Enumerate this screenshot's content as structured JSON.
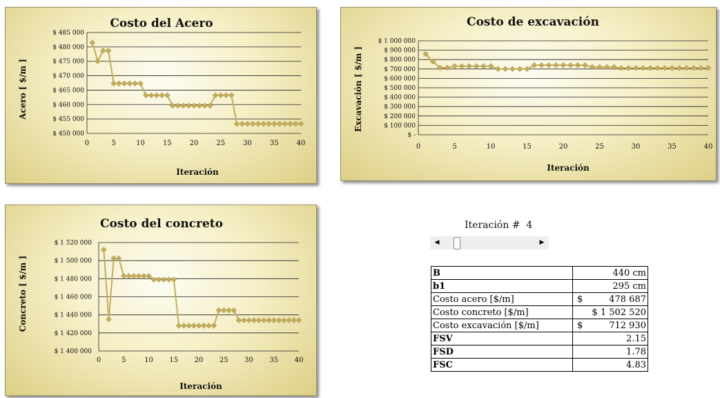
{
  "charts": {
    "chart_acero": {
      "title": "Costo del Acero",
      "xlabel": "Iteración",
      "ylabel": "Acero [ $/m ]",
      "yticks": [
        "$ 450 000",
        "$ 455 000",
        "$ 460 000",
        "$ 465 000",
        "$ 470 000",
        "$ 475 000",
        "$ 480 000",
        "$ 485 000"
      ],
      "xticks": [
        "0",
        "5",
        "10",
        "15",
        "20",
        "25",
        "30",
        "35",
        "40"
      ]
    },
    "chart_excavacion": {
      "title": "Costo de excavación",
      "xlabel": "Iteración",
      "ylabel": "Excavación [ $/m ]",
      "yticks": [
        "$ -",
        "$ 100 000",
        "$ 200 000",
        "$ 300 000",
        "$ 400 000",
        "$ 500 000",
        "$ 600 000",
        "$ 700 000",
        "$ 800 000",
        "$ 900 000",
        "$ 1 000 000"
      ],
      "xticks": [
        "0",
        "5",
        "10",
        "15",
        "20",
        "25",
        "30",
        "35",
        "40"
      ]
    },
    "chart_concreto": {
      "title": "Costo del concreto",
      "xlabel": "Iteración",
      "ylabel": "Concreto [ $/m ]",
      "yticks": [
        "$ 1 400 000",
        "$ 1 420 000",
        "$ 1 440 000",
        "$ 1 460 000",
        "$ 1 480 000",
        "$ 1 500 000",
        "$ 1 520 000"
      ],
      "xticks": [
        "0",
        "5",
        "10",
        "15",
        "20",
        "25",
        "30",
        "35",
        "40"
      ]
    }
  },
  "chart_data": [
    {
      "type": "line",
      "title": "Costo del Acero",
      "xlabel": "Iteración",
      "ylabel": "Acero [ $/m ]",
      "xlim": [
        0,
        40
      ],
      "ylim": [
        450000,
        485000
      ],
      "grid": true,
      "x": [
        1,
        2,
        3,
        4,
        5,
        6,
        7,
        8,
        9,
        10,
        11,
        12,
        13,
        14,
        15,
        16,
        17,
        18,
        19,
        20,
        21,
        22,
        23,
        24,
        25,
        26,
        27,
        28,
        29,
        30,
        31,
        32,
        33,
        34,
        35,
        36,
        37,
        38,
        39,
        40
      ],
      "series": [
        {
          "color": "#c2ad5c",
          "values": [
            481500,
            475000,
            478700,
            478700,
            467300,
            467300,
            467300,
            467300,
            467300,
            467300,
            463200,
            463200,
            463200,
            463200,
            463200,
            459600,
            459600,
            459600,
            459600,
            459600,
            459600,
            459600,
            459600,
            463200,
            463200,
            463200,
            463200,
            453300,
            453300,
            453300,
            453300,
            453300,
            453300,
            453300,
            453300,
            453300,
            453300,
            453300,
            453300,
            453300
          ]
        }
      ]
    },
    {
      "type": "line",
      "title": "Costo de excavación",
      "xlabel": "Iteración",
      "ylabel": "Excavación [ $/m ]",
      "xlim": [
        0,
        40
      ],
      "ylim": [
        0,
        1000000
      ],
      "grid": true,
      "x": [
        1,
        2,
        3,
        4,
        5,
        6,
        7,
        8,
        9,
        10,
        11,
        12,
        13,
        14,
        15,
        16,
        17,
        18,
        19,
        20,
        21,
        22,
        23,
        24,
        25,
        26,
        27,
        28,
        29,
        30,
        31,
        32,
        33,
        34,
        35,
        36,
        37,
        38,
        39,
        40
      ],
      "series": [
        {
          "color": "#c2ad5c",
          "values": [
            860000,
            780000,
            712930,
            712930,
            730000,
            730000,
            730000,
            730000,
            730000,
            730000,
            700000,
            700000,
            700000,
            700000,
            700000,
            740000,
            740000,
            740000,
            740000,
            740000,
            740000,
            740000,
            740000,
            720000,
            720000,
            720000,
            720000,
            710000,
            710000,
            710000,
            710000,
            710000,
            710000,
            710000,
            710000,
            710000,
            710000,
            710000,
            710000,
            710000
          ]
        }
      ]
    },
    {
      "type": "line",
      "title": "Costo del concreto",
      "xlabel": "Iteración",
      "ylabel": "Concreto [ $/m ]",
      "xlim": [
        0,
        40
      ],
      "ylim": [
        1400000,
        1520000
      ],
      "grid": true,
      "x": [
        1,
        2,
        3,
        4,
        5,
        6,
        7,
        8,
        9,
        10,
        11,
        12,
        13,
        14,
        15,
        16,
        17,
        18,
        19,
        20,
        21,
        22,
        23,
        24,
        25,
        26,
        27,
        28,
        29,
        30,
        31,
        32,
        33,
        34,
        35,
        36,
        37,
        38,
        39,
        40
      ],
      "series": [
        {
          "color": "#c2ad5c",
          "values": [
            1512000,
            1435000,
            1502520,
            1502520,
            1483000,
            1483000,
            1483000,
            1483000,
            1483000,
            1483000,
            1479000,
            1479000,
            1479000,
            1479000,
            1479000,
            1428000,
            1428000,
            1428000,
            1428000,
            1428000,
            1428000,
            1428000,
            1428000,
            1445000,
            1445000,
            1445000,
            1445000,
            1434000,
            1434000,
            1434000,
            1434000,
            1434000,
            1434000,
            1434000,
            1434000,
            1434000,
            1434000,
            1434000,
            1434000,
            1434000
          ]
        }
      ]
    }
  ],
  "iteration": {
    "label": "Iteración #",
    "value": "4",
    "min": 1,
    "max": 40
  },
  "table": {
    "rows": [
      {
        "label": "B",
        "value": "440 cm",
        "currency": ""
      },
      {
        "label": "b1",
        "value": "295 cm",
        "currency": ""
      },
      {
        "label": "Costo acero  [$/m]",
        "value": "478 687",
        "currency": "$"
      },
      {
        "label": "Costo concreto  [$/m]",
        "value": "$ 1 502 520",
        "currency": ""
      },
      {
        "label": "Costo excavación  [$/m]",
        "value": "712 930",
        "currency": "$"
      },
      {
        "label": "FSV",
        "value": "2.15",
        "currency": ""
      },
      {
        "label": "FSD",
        "value": "1.78",
        "currency": ""
      },
      {
        "label": "FSC",
        "value": "4.83",
        "currency": ""
      }
    ]
  }
}
